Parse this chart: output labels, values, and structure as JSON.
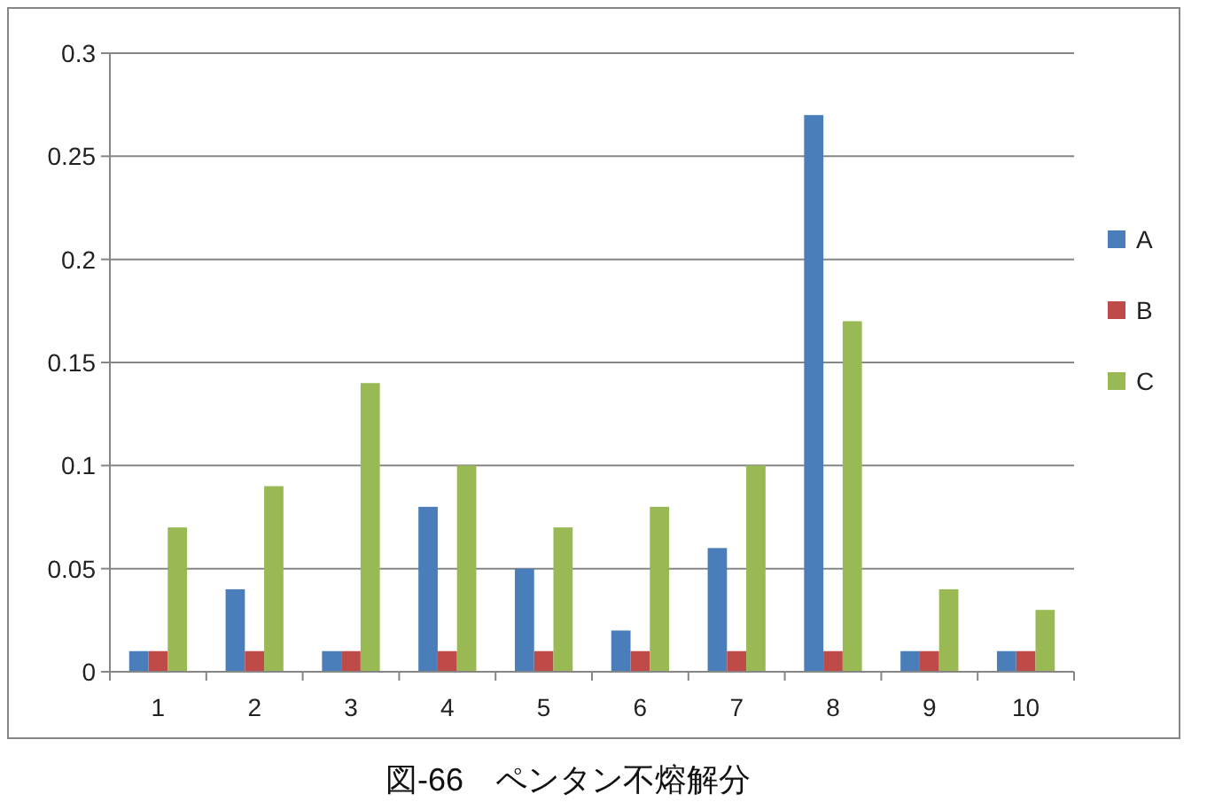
{
  "chart_data": {
    "type": "bar",
    "title": "図-66　ペンタン不熔解分",
    "categories": [
      "1",
      "2",
      "3",
      "4",
      "5",
      "6",
      "7",
      "8",
      "9",
      "10"
    ],
    "series": [
      {
        "name": "A",
        "color": "#4a7ebb",
        "values": [
          0.01,
          0.04,
          0.01,
          0.08,
          0.05,
          0.02,
          0.06,
          0.27,
          0.01,
          0.01
        ]
      },
      {
        "name": "B",
        "color": "#be4b48",
        "values": [
          0.01,
          0.01,
          0.01,
          0.01,
          0.01,
          0.01,
          0.01,
          0.01,
          0.01,
          0.01
        ]
      },
      {
        "name": "C",
        "color": "#98b954",
        "values": [
          0.07,
          0.09,
          0.14,
          0.1,
          0.07,
          0.08,
          0.1,
          0.17,
          0.04,
          0.03
        ]
      }
    ],
    "ylim": [
      0,
      0.3
    ],
    "yticks": [
      0,
      0.05,
      0.1,
      0.15,
      0.2,
      0.25,
      0.3
    ],
    "grid": "y",
    "legend": "right"
  }
}
